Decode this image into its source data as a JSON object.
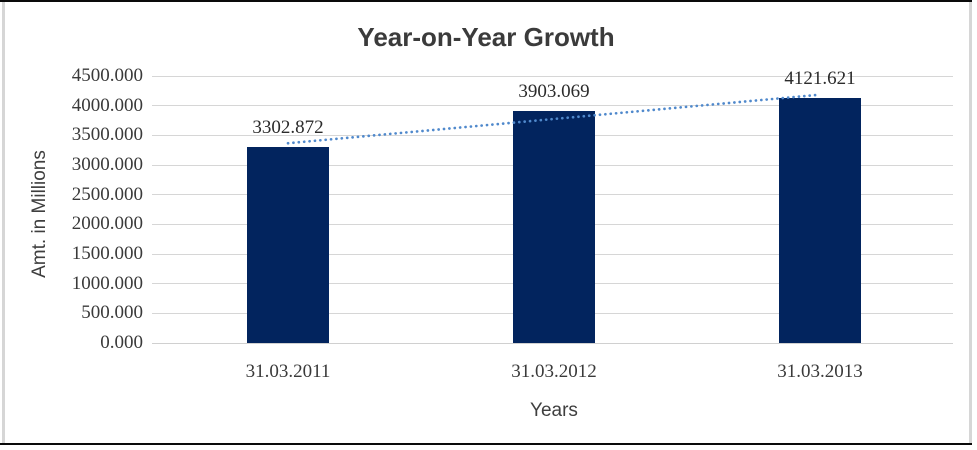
{
  "chart_data": {
    "type": "bar",
    "title": "Year-on-Year Growth",
    "xlabel": "Years",
    "ylabel": "Amt. in Millions",
    "categories": [
      "31.03.2011",
      "31.03.2012",
      "31.03.2013"
    ],
    "values": [
      3302.872,
      3903.069,
      4121.621
    ],
    "data_labels": [
      "3302.872",
      "3903.069",
      "4121.621"
    ],
    "y_ticks": [
      "4500.000",
      "4000.000",
      "3500.000",
      "3000.000",
      "2500.000",
      "2000.000",
      "1500.000",
      "1000.000",
      "500.000",
      "0.000"
    ],
    "ylim": [
      0,
      4500
    ],
    "grid": true,
    "legend": "none",
    "trendline": {
      "type": "linear",
      "style": "dotted",
      "color": "#5089cc"
    },
    "colors": {
      "bar": "#02245e",
      "gridline": "#d6d6d6",
      "title_text": "#3b3b3b",
      "axis_text": "#3a3a3a",
      "frame_horizontal": "#0a0a0a",
      "frame_vertical": "#d6d6d6"
    }
  }
}
